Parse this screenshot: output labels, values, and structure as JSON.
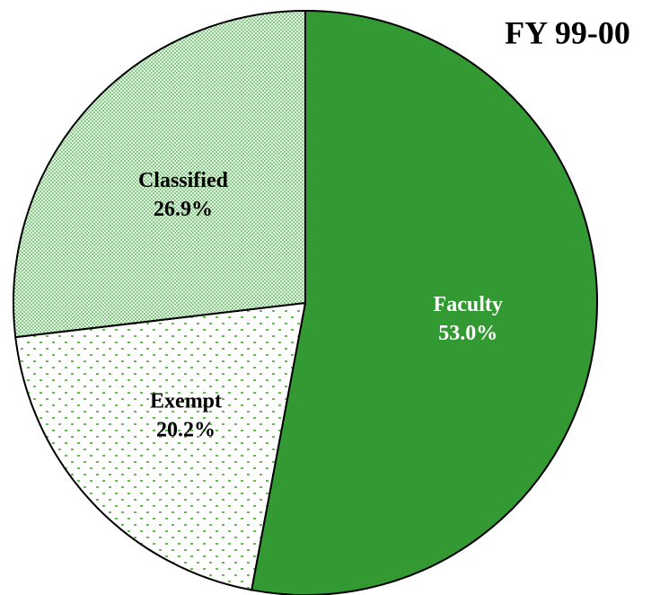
{
  "chart_data": {
    "type": "pie",
    "title": "FY 99-00",
    "categories": [
      "Faculty",
      "Exempt",
      "Classified"
    ],
    "values": [
      53.0,
      20.2,
      26.9
    ],
    "value_labels": [
      "53.0%",
      "20.2%",
      "26.9%"
    ],
    "colors": [
      "#339933",
      "#66bb55",
      "#88cc88"
    ]
  }
}
